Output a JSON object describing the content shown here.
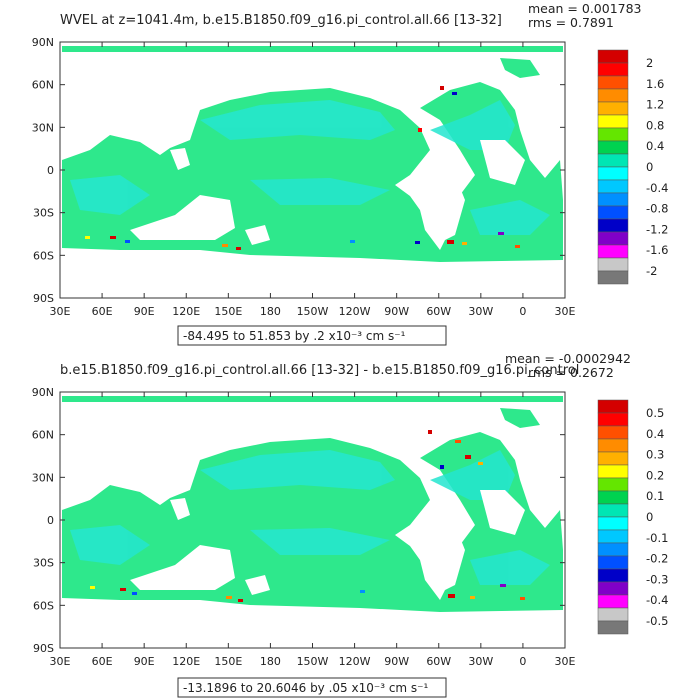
{
  "panels": [
    {
      "title": "WVEL at z=1041.4m, b.e15.B1850.f09_g16.pi_control.all.66 [13-32]",
      "stats": {
        "mean": "mean = 0.001783",
        "rms": "rms = 0.7891"
      },
      "range_note": "-84.495 to 51.853 by .2 x10⁻³ cm s⁻¹",
      "colorbar_labels": [
        "2",
        "1.6",
        "1.2",
        "0.8",
        "0.4",
        "0",
        "-0.4",
        "-0.8",
        "-1.2",
        "-1.6",
        "-2"
      ]
    },
    {
      "title": "b.e15.B1850.f09_g16.pi_control.all.66 [13-32] - b.e15.B1850.f09_g16.pi_control",
      "stats": {
        "mean": "mean = -0.0002942",
        "rms": "rms = 0.2672"
      },
      "range_note": "-13.1896 to 20.6046 by .05 x10⁻³ cm s⁻¹",
      "colorbar_labels": [
        "0.5",
        "0.4",
        "0.3",
        "0.2",
        "0.1",
        "0",
        "-0.1",
        "-0.2",
        "-0.3",
        "-0.4",
        "-0.5"
      ]
    }
  ],
  "axes": {
    "lat_labels": [
      "90N",
      "60N",
      "30N",
      "0",
      "30S",
      "60S",
      "90S"
    ],
    "lon_labels": [
      "30E",
      "60E",
      "90E",
      "120E",
      "150E",
      "180",
      "150W",
      "120W",
      "90W",
      "60W",
      "30W",
      "0",
      "30E"
    ]
  },
  "colors": {
    "scale": [
      "#d40000",
      "#ff0000",
      "#ff5000",
      "#ff8c00",
      "#ffb000",
      "#ffff00",
      "#64e600",
      "#00d250",
      "#00e6b4",
      "#00ffff",
      "#00c8ff",
      "#0090ff",
      "#0050ff",
      "#0000c8",
      "#8000c8",
      "#ff00ff",
      "#c8c8c8",
      "#787878"
    ],
    "ocean": "#2ee88c",
    "ocean_alt": "#24e6d0",
    "land": "#ffffff"
  }
}
